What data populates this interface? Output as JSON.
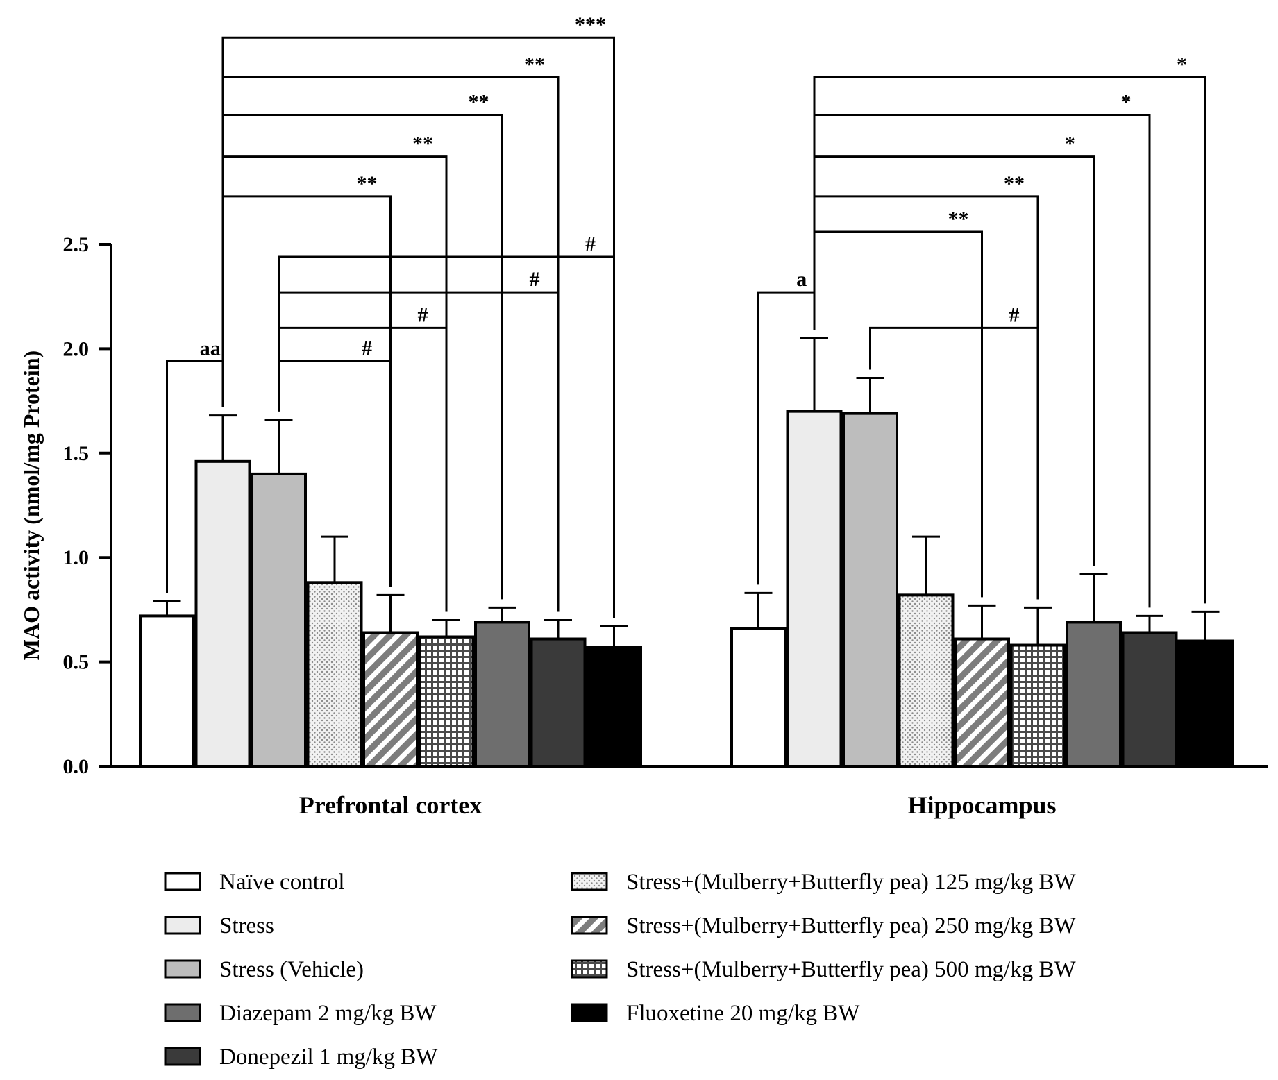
{
  "chart_data": {
    "type": "bar",
    "ylabel": "MAO activity (nmol/mg Protein)",
    "ylim": [
      0,
      2.5
    ],
    "yticks": [
      "0.0",
      "0.5",
      "1.0",
      "1.5",
      "2.0",
      "2.5"
    ],
    "categories": [
      "Prefrontal cortex",
      "Hippocampus"
    ],
    "series": [
      {
        "name": "Naïve control",
        "values": [
          0.72,
          0.66
        ],
        "errors": [
          0.07,
          0.17
        ],
        "fill": "#ffffff",
        "pattern": "solid"
      },
      {
        "name": "Stress",
        "values": [
          1.46,
          1.7
        ],
        "errors": [
          0.22,
          0.35
        ],
        "fill": "#ececec",
        "pattern": "solid"
      },
      {
        "name": "Stress (Vehicle)",
        "values": [
          1.4,
          1.69
        ],
        "errors": [
          0.26,
          0.17
        ],
        "fill": "#bdbdbd",
        "pattern": "solid"
      },
      {
        "name": "Stress+(Mulberry+Butterfly pea) 125 mg/kg BW",
        "values": [
          0.88,
          0.82
        ],
        "errors": [
          0.22,
          0.28
        ],
        "fill": "#f2f2f2",
        "pattern": "dots"
      },
      {
        "name": "Stress+(Mulberry+Butterfly pea) 250 mg/kg BW",
        "values": [
          0.64,
          0.61
        ],
        "errors": [
          0.18,
          0.16
        ],
        "fill": "#888888",
        "pattern": "diagonal"
      },
      {
        "name": "Stress+(Mulberry+Butterfly pea) 500 mg/kg BW",
        "values": [
          0.62,
          0.58
        ],
        "errors": [
          0.08,
          0.18
        ],
        "fill": "#666666",
        "pattern": "grid"
      },
      {
        "name": "Diazepam 2 mg/kg BW",
        "values": [
          0.69,
          0.69
        ],
        "errors": [
          0.07,
          0.23
        ],
        "fill": "#6e6e6e",
        "pattern": "solid"
      },
      {
        "name": "Donepezil 1 mg/kg BW",
        "values": [
          0.61,
          0.64
        ],
        "errors": [
          0.09,
          0.08
        ],
        "fill": "#3a3a3a",
        "pattern": "solid"
      },
      {
        "name": "Fluoxetine 20 mg/kg BW",
        "values": [
          0.57,
          0.6
        ],
        "errors": [
          0.1,
          0.14
        ],
        "fill": "#000000",
        "pattern": "solid"
      }
    ],
    "legend_order": [
      0,
      1,
      2,
      6,
      7,
      3,
      4,
      5,
      8
    ],
    "legend_placement": "bottom",
    "grid": false,
    "significance": [
      {
        "group": 0,
        "from": 0,
        "to": 1,
        "label": "aa",
        "y": 1.94
      },
      {
        "group": 0,
        "from": 1,
        "to": 4,
        "label": "**",
        "y": 2.73
      },
      {
        "group": 0,
        "from": 1,
        "to": 5,
        "label": "**",
        "y": 2.92
      },
      {
        "group": 0,
        "from": 1,
        "to": 6,
        "label": "**",
        "y": 3.12
      },
      {
        "group": 0,
        "from": 1,
        "to": 7,
        "label": "**",
        "y": 3.3
      },
      {
        "group": 0,
        "from": 1,
        "to": 8,
        "label": "***",
        "y": 3.49
      },
      {
        "group": 0,
        "from": 2,
        "to": 4,
        "label": "#",
        "y": 1.94
      },
      {
        "group": 0,
        "from": 2,
        "to": 5,
        "label": "#",
        "y": 2.1
      },
      {
        "group": 0,
        "from": 2,
        "to": 7,
        "label": "#",
        "y": 2.27
      },
      {
        "group": 0,
        "from": 2,
        "to": 8,
        "label": "#",
        "y": 2.44
      },
      {
        "group": 1,
        "from": 0,
        "to": 1,
        "label": "a",
        "y": 2.27
      },
      {
        "group": 1,
        "from": 1,
        "to": 4,
        "label": "**",
        "y": 2.56
      },
      {
        "group": 1,
        "from": 1,
        "to": 5,
        "label": "**",
        "y": 2.73
      },
      {
        "group": 1,
        "from": 1,
        "to": 6,
        "label": "*",
        "y": 2.92
      },
      {
        "group": 1,
        "from": 1,
        "to": 7,
        "label": "*",
        "y": 3.12
      },
      {
        "group": 1,
        "from": 1,
        "to": 8,
        "label": "*",
        "y": 3.3
      },
      {
        "group": 1,
        "from": 2,
        "to": 5,
        "label": "#",
        "y": 2.1
      }
    ]
  }
}
